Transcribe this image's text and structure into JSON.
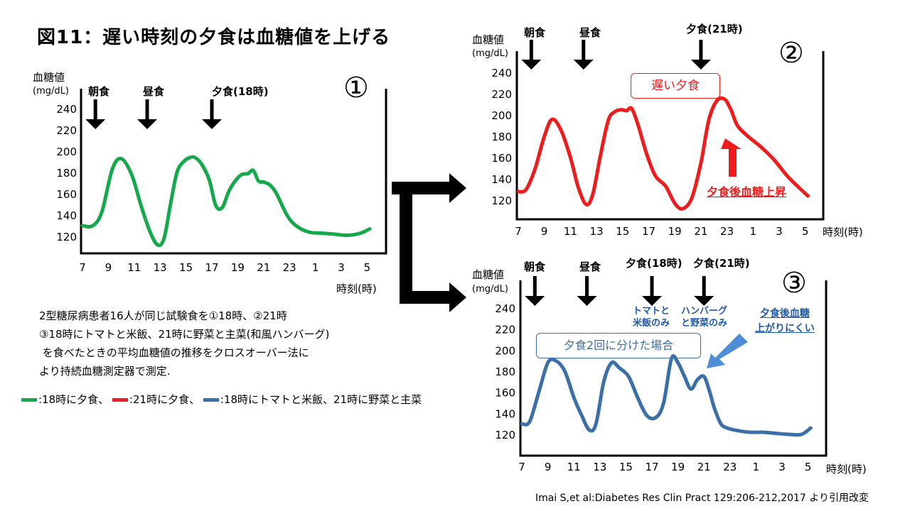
{
  "title": "図11：遅い時刻の夕食は血糖値を上げる",
  "description": [
    "2型糖尿病患者16人が同じ試験食を①18時、②21時",
    "③18時にトマトと米飯、21時に野菜と主菜(和風ハンバーグ)",
    " を食べたときの平均血糖値の推移をクロスオーバー法に",
    "より持続血糖測定器で測定."
  ],
  "legend": [
    {
      "label": ":18時に夕食、",
      "color": "#16a84c"
    },
    {
      "label": ":21時に夕食、",
      "color": "#ee1c1c"
    },
    {
      "label": ":18時にトマトと米飯、21時に野菜と主菜",
      "color": "#3a6fa8"
    }
  ],
  "citation": "Imai S,et al:Diabetes Res Clin Pract 129:206-212,2017 より引用改変",
  "colors": {
    "green": "#16a84c",
    "red": "#ee1c1c",
    "blue": "#3a6fa8",
    "arrow": "#000000"
  },
  "chart_data": [
    {
      "type": "line",
      "number_label": "①",
      "ylabel": "血糖値",
      "yunit": "(mg/dL)",
      "xlabel": "時刻(時)",
      "y_ticks": [
        "240",
        "220",
        "200",
        "180",
        "160",
        "140",
        "120"
      ],
      "x_ticks": [
        "7",
        "9",
        "11",
        "13",
        "15",
        "17",
        "19",
        "21",
        "23",
        "1",
        "3",
        "5"
      ],
      "ylim": [
        110,
        245
      ],
      "meals": [
        {
          "label": "朝食",
          "x": 8
        },
        {
          "label": "昼食",
          "x": 12
        },
        {
          "label": "夕食(18時)",
          "x": 17
        }
      ],
      "series": [
        {
          "color": "#16a84c",
          "x": [
            7,
            7.8,
            8.5,
            9.3,
            10,
            10.8,
            11.5,
            12.2,
            12.8,
            13.3,
            13.8,
            14.3,
            14.8,
            15.3,
            15.7,
            16.2,
            16.8,
            17.3,
            17.8,
            18.3,
            18.8,
            19.3,
            19.8,
            20.2,
            20.6,
            21,
            21.5,
            22,
            22.8,
            23.5,
            24.5,
            25.5,
            26.5,
            27.5,
            28.5,
            29.2
          ],
          "y": [
            130,
            130,
            143,
            183,
            193,
            178,
            150,
            125,
            112,
            118,
            150,
            180,
            190,
            194,
            194,
            188,
            173,
            149,
            147,
            162,
            172,
            178,
            179,
            182,
            172,
            171,
            168,
            160,
            140,
            130,
            124,
            123,
            122,
            121,
            123,
            127
          ]
        }
      ]
    },
    {
      "type": "line",
      "number_label": "②",
      "ylabel": "血糖値",
      "yunit": "(mg/dL)",
      "xlabel": "時刻(時)",
      "y_ticks": [
        "240",
        "220",
        "200",
        "180",
        "160",
        "140",
        "120"
      ],
      "x_ticks": [
        "7",
        "9",
        "11",
        "13",
        "15",
        "17",
        "19",
        "21",
        "23",
        "1",
        "3",
        "5"
      ],
      "ylim": [
        110,
        245
      ],
      "meals": [
        {
          "label": "朝食",
          "x": 8
        },
        {
          "label": "昼食",
          "x": 12
        },
        {
          "label": "夕食(21時)",
          "x": 21
        }
      ],
      "annotations": [
        "遅い夕食",
        "夕食後血糖上昇"
      ],
      "series": [
        {
          "color": "#ee1c1c",
          "x": [
            7,
            7.6,
            8.3,
            9,
            9.6,
            10.3,
            11,
            11.6,
            12.2,
            12.7,
            13.3,
            13.9,
            14.4,
            14.9,
            15.3,
            15.7,
            16.2,
            16.8,
            17.5,
            18.3,
            19,
            19.6,
            20.3,
            21,
            21.6,
            22.2,
            22.8,
            23.3,
            23.8,
            24.6,
            25.6,
            26.6,
            27.6,
            28.5,
            29.2
          ],
          "y": [
            128,
            130,
            150,
            180,
            196,
            185,
            160,
            132,
            116,
            125,
            162,
            195,
            203,
            205,
            204,
            206,
            190,
            165,
            143,
            133,
            117,
            112,
            122,
            155,
            195,
            213,
            215,
            205,
            190,
            180,
            170,
            158,
            143,
            132,
            124
          ]
        }
      ]
    },
    {
      "type": "line",
      "number_label": "③",
      "ylabel": "血糖値",
      "yunit": "(mg/dL)",
      "xlabel": "時刻(時)",
      "y_ticks": [
        "240",
        "220",
        "200",
        "180",
        "160",
        "140",
        "120"
      ],
      "x_ticks": [
        "7",
        "9",
        "11",
        "13",
        "15",
        "17",
        "19",
        "21",
        "23",
        "1",
        "3",
        "5"
      ],
      "ylim": [
        110,
        245
      ],
      "meals": [
        {
          "label": "朝食",
          "x": 8
        },
        {
          "label": "昼食",
          "x": 12
        },
        {
          "label": "夕食(18時)",
          "x": 17
        },
        {
          "label": "夕食(21時)",
          "x": 21
        }
      ],
      "meal_notes": [
        "トマトと\n米飯のみ",
        "ハンバーグ\nと野菜のみ"
      ],
      "annotations": [
        "夕食2回に分けた場合",
        "夕食後血糖\n上がりにくい"
      ],
      "series": [
        {
          "color": "#3a6fa8",
          "x": [
            7,
            7.6,
            8.3,
            9,
            9.6,
            10.3,
            11,
            11.6,
            12.2,
            12.7,
            13.3,
            13.9,
            14.5,
            15.2,
            15.9,
            16.6,
            17.3,
            17.9,
            18.5,
            19,
            19.5,
            20,
            20.5,
            21,
            21.4,
            21.8,
            22.3,
            22.8,
            23.4,
            24.5,
            25.5,
            26.5,
            27.5,
            28.5,
            29.2
          ],
          "y": [
            130,
            132,
            160,
            188,
            190,
            180,
            155,
            138,
            124,
            130,
            170,
            188,
            183,
            175,
            155,
            138,
            136,
            150,
            192,
            188,
            175,
            163,
            172,
            175,
            162,
            145,
            130,
            126,
            124,
            122,
            122,
            121,
            120,
            120,
            126
          ]
        }
      ]
    }
  ]
}
